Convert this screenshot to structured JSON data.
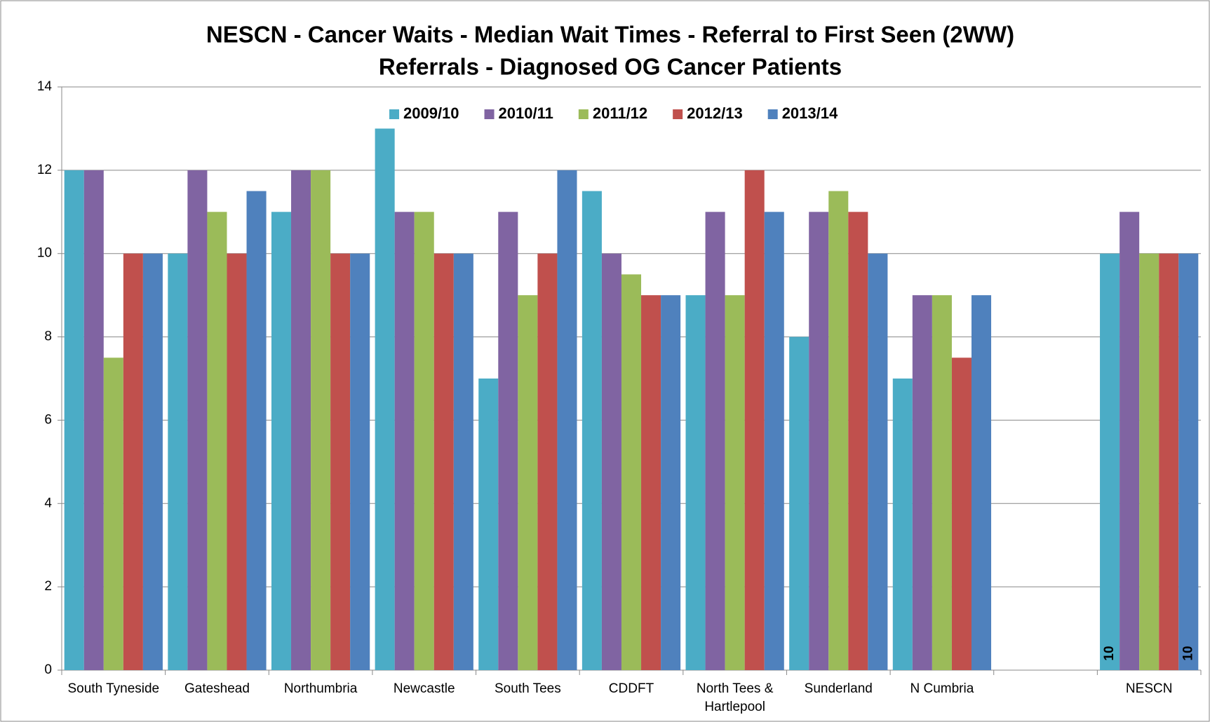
{
  "chart_data": {
    "type": "bar",
    "title": [
      "NESCN - Cancer Waits - Median Wait Times - Referral to First Seen (2WW)",
      "Referrals  - Diagnosed OG Cancer Patients"
    ],
    "categories": [
      "South Tyneside",
      "Gateshead",
      "Northumbria",
      "Newcastle",
      "South Tees",
      "CDDFT",
      "North Tees & Hartlepool",
      "Sunderland",
      "N Cumbria",
      null,
      "NESCN"
    ],
    "series": [
      {
        "name": "2009/10",
        "color": "#4bacc6",
        "values": [
          12,
          10,
          11,
          13,
          7,
          11.5,
          9,
          8,
          7,
          null,
          10
        ],
        "value_labels": [
          null,
          null,
          null,
          null,
          null,
          null,
          null,
          null,
          null,
          null,
          "10"
        ]
      },
      {
        "name": "2010/11",
        "color": "#8064a2",
        "values": [
          12,
          12,
          12,
          11,
          11,
          10,
          11,
          11,
          9,
          null,
          11
        ]
      },
      {
        "name": "2011/12",
        "color": "#9bbb59",
        "values": [
          7.5,
          11,
          12,
          11,
          9,
          9.5,
          9,
          11.5,
          9,
          null,
          10
        ]
      },
      {
        "name": "2012/13",
        "color": "#c0504d",
        "values": [
          10,
          10,
          10,
          10,
          10,
          9,
          12,
          11,
          7.5,
          null,
          10
        ]
      },
      {
        "name": "2013/14",
        "color": "#4f81bd",
        "values": [
          10,
          11.5,
          10,
          10,
          12,
          9,
          11,
          10,
          9,
          null,
          10
        ],
        "value_labels": [
          null,
          null,
          null,
          null,
          null,
          null,
          null,
          null,
          null,
          null,
          "10"
        ]
      }
    ],
    "ylim": [
      0,
      14
    ],
    "yticks": [
      0,
      2,
      4,
      6,
      8,
      10,
      12,
      14
    ],
    "grid": true,
    "legend": "top"
  }
}
